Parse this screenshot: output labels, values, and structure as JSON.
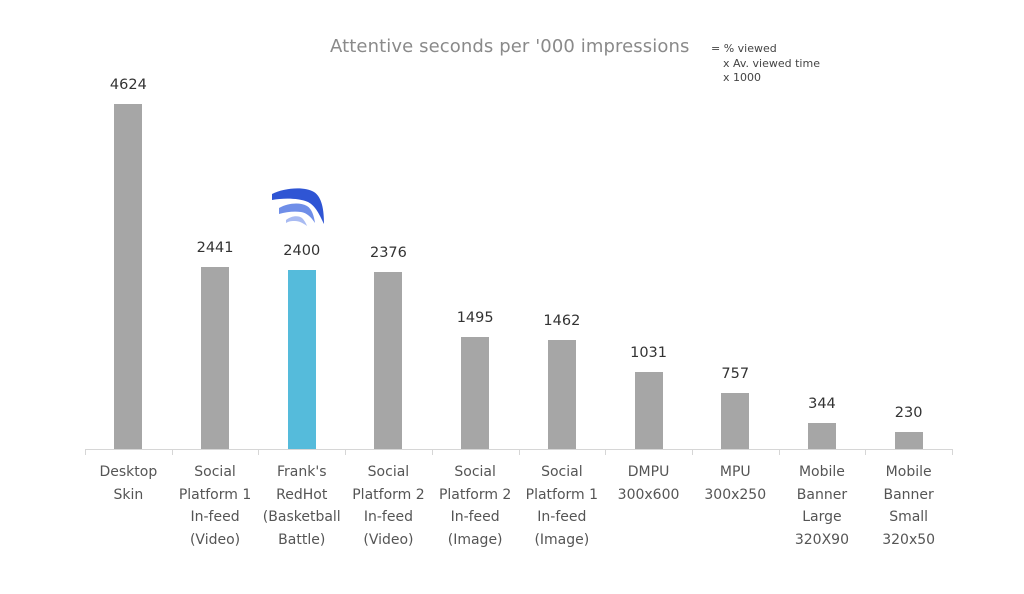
{
  "header": {
    "title": "Attentive seconds per '000 impressions",
    "formula_lines": [
      "= % viewed",
      "x Av. viewed time",
      "x 1000"
    ]
  },
  "colors": {
    "bar_default": "#a6a6a6",
    "bar_highlight": "#55bbdb",
    "axis": "#d6d6d6",
    "logo_dark": "#2f55d4",
    "logo_light": "#8fa6ee"
  },
  "chart_data": {
    "type": "bar",
    "title": "Attentive seconds per '000 impressions",
    "annotation": "= % viewed x Av. viewed time x 1000",
    "categories": [
      "Desktop Skin",
      "Social Platform 1 In-feed (Video)",
      "Frank's RedHot (Basketball Battle)",
      "Social Platform 2 In-feed (Video)",
      "Social Platform 2 In-feed (Image)",
      "Social Platform 1 In-feed (Image)",
      "DMPU 300x600",
      "MPU 300x250",
      "Mobile Banner Large 320X90",
      "Mobile Banner Small 320x50"
    ],
    "values": [
      4624,
      2441,
      2400,
      2376,
      1495,
      1462,
      1031,
      757,
      344,
      230
    ],
    "highlight_index": 2,
    "xlabel": "",
    "ylabel": "",
    "ylim": [
      0,
      4624
    ],
    "grid": false,
    "legend": "none",
    "data_labels": true
  },
  "bars": [
    {
      "value": "4624",
      "label_lines": [
        "Desktop",
        "Skin"
      ]
    },
    {
      "value": "2441",
      "label_lines": [
        "Social",
        "Platform 1",
        "In-feed",
        "(Video)"
      ]
    },
    {
      "value": "2400",
      "label_lines": [
        "Frank's",
        "RedHot",
        "(Basketball",
        "Battle)"
      ]
    },
    {
      "value": "2376",
      "label_lines": [
        "Social",
        "Platform 2",
        "In-feed",
        "(Video)"
      ]
    },
    {
      "value": "1495",
      "label_lines": [
        "Social",
        "Platform 2",
        "In-feed",
        "(Image)"
      ]
    },
    {
      "value": "1462",
      "label_lines": [
        "Social",
        "Platform 1",
        "In-feed",
        "(Image)"
      ]
    },
    {
      "value": "1031",
      "label_lines": [
        "DMPU",
        "300x600"
      ]
    },
    {
      "value": "757",
      "label_lines": [
        "MPU",
        "300x250"
      ]
    },
    {
      "value": "344",
      "label_lines": [
        "Mobile",
        "Banner",
        "Large",
        "320X90"
      ]
    },
    {
      "value": "230",
      "label_lines": [
        "Mobile",
        "Banner",
        "Small",
        "320x50"
      ]
    }
  ]
}
